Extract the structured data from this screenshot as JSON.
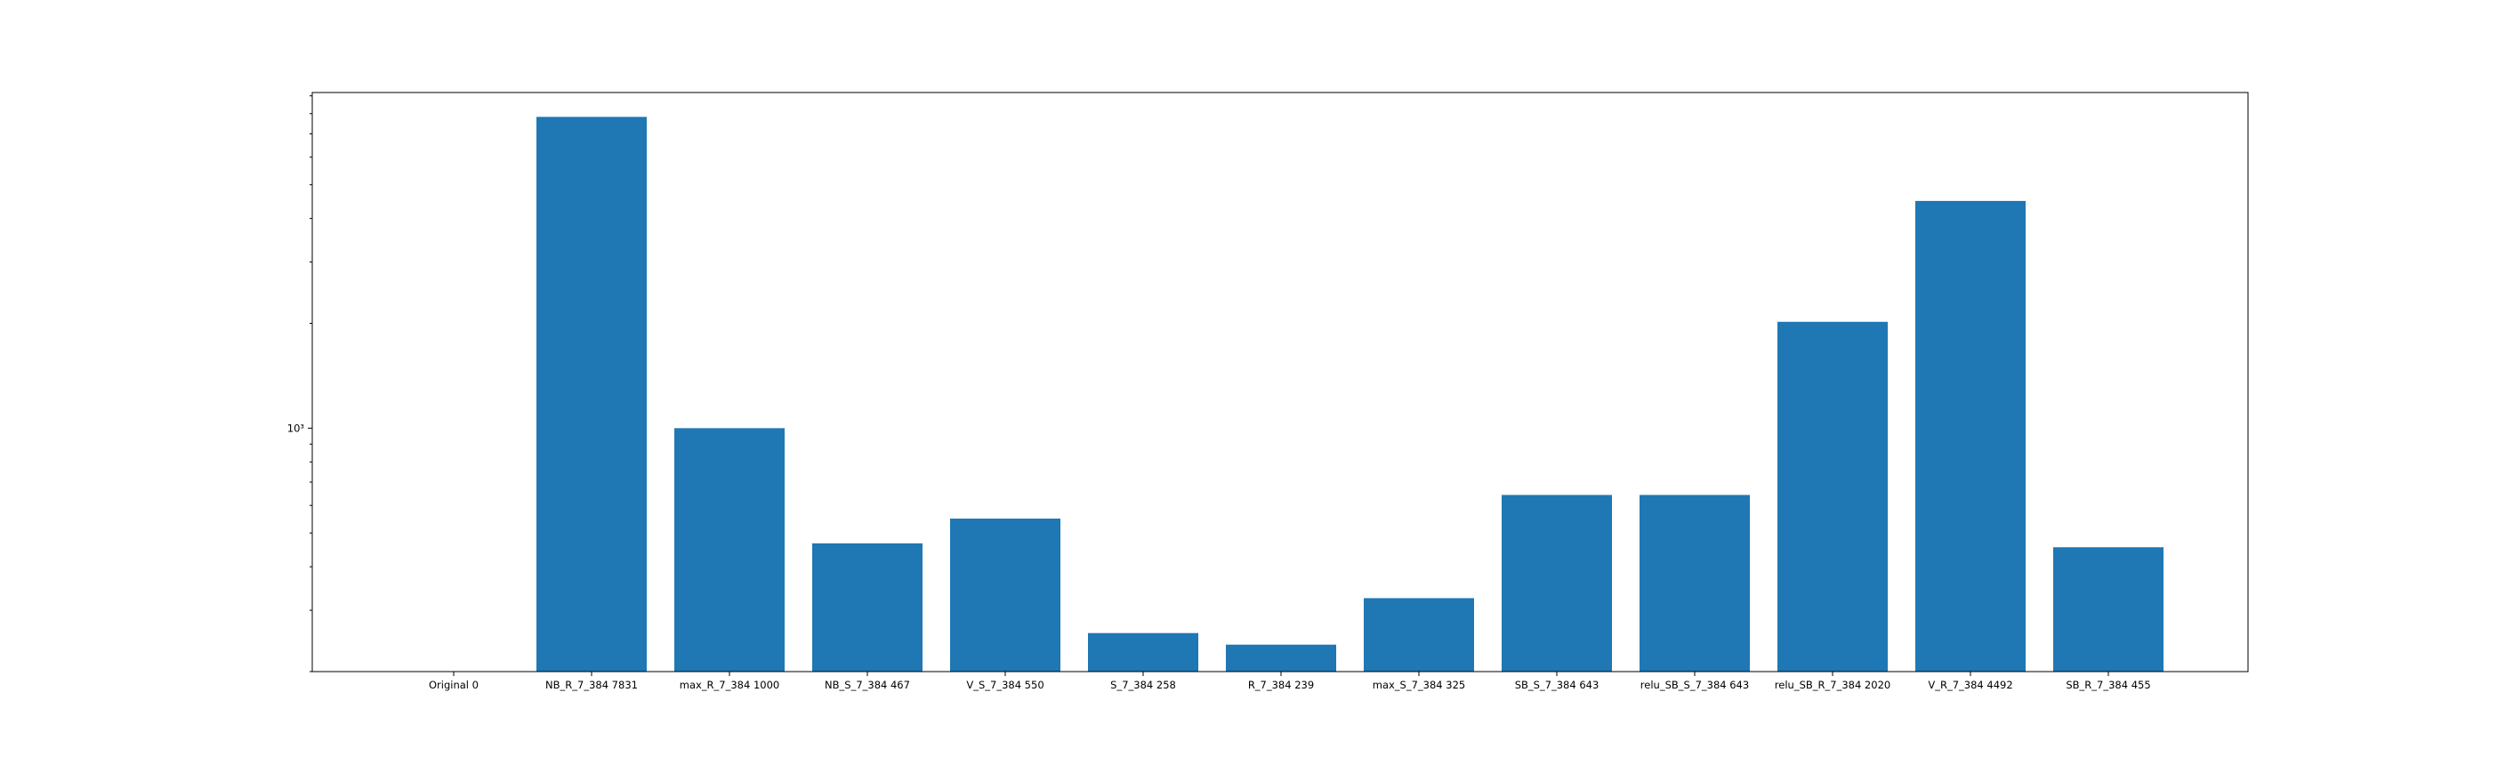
{
  "chart_data": {
    "type": "bar",
    "categories": [
      "Original 0",
      "NB_R_7_384 7831",
      "max_R_7_384 1000",
      "NB_S_7_384 467",
      "V_S_7_384 550",
      "S_7_384 258",
      "R_7_384 239",
      "max_S_7_384 325",
      "SB_S_7_384 643",
      "relu_SB_S_7_384 643",
      "relu_SB_R_7_384 2020",
      "V_R_7_384 4492",
      "SB_R_7_384 455"
    ],
    "values": [
      0,
      7831,
      1000,
      467,
      550,
      258,
      239,
      325,
      643,
      643,
      2020,
      4492,
      455
    ],
    "yscale": "log",
    "ylim": [
      200,
      9200
    ],
    "ytick_labels": [
      {
        "value": 1000,
        "label": "10³"
      }
    ],
    "bar_color": "#1f77b4",
    "title": "",
    "xlabel": "",
    "ylabel": "",
    "grid": false,
    "legend": false
  }
}
